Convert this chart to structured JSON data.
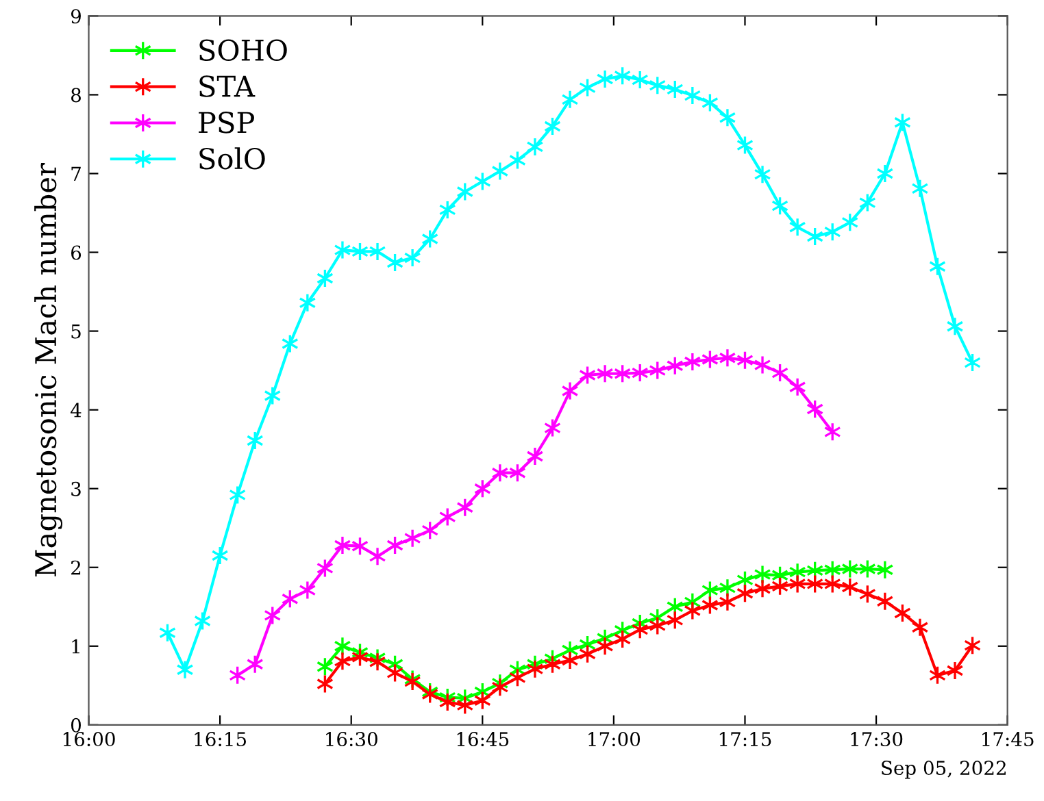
{
  "chart_data": {
    "type": "line",
    "ylabel": "Magnetosonic Mach number",
    "annotations": [
      "Sep 05, 2022"
    ],
    "xlim": [
      "2022-09-05T16:00",
      "2022-09-05T17:45"
    ],
    "xticks": [
      {
        "value": "2022-09-05T16:00",
        "label": "16:00"
      },
      {
        "value": "2022-09-05T16:15",
        "label": "16:15"
      },
      {
        "value": "2022-09-05T16:30",
        "label": "16:30"
      },
      {
        "value": "2022-09-05T16:45",
        "label": "16:45"
      },
      {
        "value": "2022-09-05T17:00",
        "label": "17:00"
      },
      {
        "value": "2022-09-05T17:15",
        "label": "17:15"
      },
      {
        "value": "2022-09-05T17:30",
        "label": "17:30"
      },
      {
        "value": "2022-09-05T17:45",
        "label": "17:45"
      }
    ],
    "ylim": [
      0,
      9
    ],
    "yticks": [
      0,
      1,
      2,
      3,
      4,
      5,
      6,
      7,
      8,
      9
    ],
    "grid": false,
    "legend": "top left",
    "marker": "cross",
    "line_style": "solid",
    "series": [
      {
        "name": "SOHO",
        "color": "#00ff00",
        "x": [
          "2022-09-05T16:27",
          "2022-09-05T16:29",
          "2022-09-05T16:31",
          "2022-09-05T16:33",
          "2022-09-05T16:35",
          "2022-09-05T16:37",
          "2022-09-05T16:39",
          "2022-09-05T16:41",
          "2022-09-05T16:43",
          "2022-09-05T16:45",
          "2022-09-05T16:47",
          "2022-09-05T16:49",
          "2022-09-05T16:51",
          "2022-09-05T16:53",
          "2022-09-05T16:55",
          "2022-09-05T16:57",
          "2022-09-05T16:59",
          "2022-09-05T17:01",
          "2022-09-05T17:03",
          "2022-09-05T17:05",
          "2022-09-05T17:07",
          "2022-09-05T17:09",
          "2022-09-05T17:11",
          "2022-09-05T17:13",
          "2022-09-05T17:15",
          "2022-09-05T17:17",
          "2022-09-05T17:19",
          "2022-09-05T17:21",
          "2022-09-05T17:23",
          "2022-09-05T17:25",
          "2022-09-05T17:27",
          "2022-09-05T17:29",
          "2022-09-05T17:31"
        ],
        "values": [
          0.74,
          1.0,
          0.92,
          0.85,
          0.77,
          0.58,
          0.42,
          0.35,
          0.34,
          0.42,
          0.53,
          0.7,
          0.77,
          0.84,
          0.95,
          1.02,
          1.1,
          1.2,
          1.29,
          1.36,
          1.5,
          1.56,
          1.71,
          1.74,
          1.84,
          1.91,
          1.9,
          1.94,
          1.96,
          1.97,
          1.98,
          1.98,
          1.97
        ]
      },
      {
        "name": "STA",
        "color": "#ff0000",
        "x": [
          "2022-09-05T16:27",
          "2022-09-05T16:29",
          "2022-09-05T16:31",
          "2022-09-05T16:33",
          "2022-09-05T16:35",
          "2022-09-05T16:37",
          "2022-09-05T16:39",
          "2022-09-05T16:41",
          "2022-09-05T16:43",
          "2022-09-05T16:45",
          "2022-09-05T16:47",
          "2022-09-05T16:49",
          "2022-09-05T16:51",
          "2022-09-05T16:53",
          "2022-09-05T16:55",
          "2022-09-05T16:57",
          "2022-09-05T16:59",
          "2022-09-05T17:01",
          "2022-09-05T17:03",
          "2022-09-05T17:05",
          "2022-09-05T17:07",
          "2022-09-05T17:09",
          "2022-09-05T17:11",
          "2022-09-05T17:13",
          "2022-09-05T17:15",
          "2022-09-05T17:17",
          "2022-09-05T17:19",
          "2022-09-05T17:21",
          "2022-09-05T17:23",
          "2022-09-05T17:25",
          "2022-09-05T17:27",
          "2022-09-05T17:29",
          "2022-09-05T17:31",
          "2022-09-05T17:33",
          "2022-09-05T17:35",
          "2022-09-05T17:37",
          "2022-09-05T17:39",
          "2022-09-05T17:41"
        ],
        "values": [
          0.52,
          0.81,
          0.86,
          0.8,
          0.66,
          0.55,
          0.39,
          0.29,
          0.25,
          0.31,
          0.48,
          0.6,
          0.71,
          0.77,
          0.82,
          0.9,
          1.0,
          1.09,
          1.21,
          1.26,
          1.33,
          1.45,
          1.52,
          1.56,
          1.67,
          1.73,
          1.76,
          1.79,
          1.79,
          1.79,
          1.75,
          1.66,
          1.57,
          1.42,
          1.24,
          0.63,
          0.69,
          1.01
        ]
      },
      {
        "name": "PSP",
        "color": "#ff00ff",
        "x": [
          "2022-09-05T16:17",
          "2022-09-05T16:19",
          "2022-09-05T16:21",
          "2022-09-05T16:23",
          "2022-09-05T16:25",
          "2022-09-05T16:27",
          "2022-09-05T16:29",
          "2022-09-05T16:31",
          "2022-09-05T16:33",
          "2022-09-05T16:35",
          "2022-09-05T16:37",
          "2022-09-05T16:39",
          "2022-09-05T16:41",
          "2022-09-05T16:43",
          "2022-09-05T16:45",
          "2022-09-05T16:47",
          "2022-09-05T16:49",
          "2022-09-05T16:51",
          "2022-09-05T16:53",
          "2022-09-05T16:55",
          "2022-09-05T16:57",
          "2022-09-05T16:59",
          "2022-09-05T17:01",
          "2022-09-05T17:03",
          "2022-09-05T17:05",
          "2022-09-05T17:07",
          "2022-09-05T17:09",
          "2022-09-05T17:11",
          "2022-09-05T17:13",
          "2022-09-05T17:15",
          "2022-09-05T17:17",
          "2022-09-05T17:19",
          "2022-09-05T17:21",
          "2022-09-05T17:23",
          "2022-09-05T17:25"
        ],
        "values": [
          0.63,
          0.77,
          1.39,
          1.6,
          1.71,
          1.99,
          2.28,
          2.27,
          2.14,
          2.28,
          2.37,
          2.47,
          2.64,
          2.76,
          3.0,
          3.2,
          3.2,
          3.41,
          3.77,
          4.24,
          4.44,
          4.46,
          4.46,
          4.47,
          4.5,
          4.56,
          4.61,
          4.64,
          4.66,
          4.63,
          4.57,
          4.47,
          4.29,
          4.01,
          3.72
        ]
      },
      {
        "name": "SolO",
        "color": "#00ffff",
        "x": [
          "2022-09-05T16:09",
          "2022-09-05T16:11",
          "2022-09-05T16:13",
          "2022-09-05T16:15",
          "2022-09-05T16:17",
          "2022-09-05T16:19",
          "2022-09-05T16:21",
          "2022-09-05T16:23",
          "2022-09-05T16:25",
          "2022-09-05T16:27",
          "2022-09-05T16:29",
          "2022-09-05T16:31",
          "2022-09-05T16:33",
          "2022-09-05T16:35",
          "2022-09-05T16:37",
          "2022-09-05T16:39",
          "2022-09-05T16:41",
          "2022-09-05T16:43",
          "2022-09-05T16:45",
          "2022-09-05T16:47",
          "2022-09-05T16:49",
          "2022-09-05T16:51",
          "2022-09-05T16:53",
          "2022-09-05T16:55",
          "2022-09-05T16:57",
          "2022-09-05T16:59",
          "2022-09-05T17:01",
          "2022-09-05T17:03",
          "2022-09-05T17:05",
          "2022-09-05T17:07",
          "2022-09-05T17:09",
          "2022-09-05T17:11",
          "2022-09-05T17:13",
          "2022-09-05T17:15",
          "2022-09-05T17:17",
          "2022-09-05T17:19",
          "2022-09-05T17:21",
          "2022-09-05T17:23",
          "2022-09-05T17:25",
          "2022-09-05T17:27",
          "2022-09-05T17:29",
          "2022-09-05T17:31",
          "2022-09-05T17:33",
          "2022-09-05T17:35",
          "2022-09-05T17:37",
          "2022-09-05T17:39",
          "2022-09-05T17:41"
        ],
        "values": [
          1.17,
          0.7,
          1.32,
          2.15,
          2.92,
          3.61,
          4.18,
          4.84,
          5.36,
          5.67,
          6.03,
          6.01,
          6.01,
          5.87,
          5.93,
          6.17,
          6.54,
          6.77,
          6.9,
          7.03,
          7.17,
          7.34,
          7.6,
          7.94,
          8.09,
          8.2,
          8.24,
          8.19,
          8.12,
          8.07,
          7.99,
          7.9,
          7.71,
          7.36,
          6.99,
          6.59,
          6.32,
          6.2,
          6.26,
          6.38,
          6.63,
          7.0,
          7.65,
          6.81,
          5.82,
          5.06,
          4.6
        ]
      }
    ]
  }
}
